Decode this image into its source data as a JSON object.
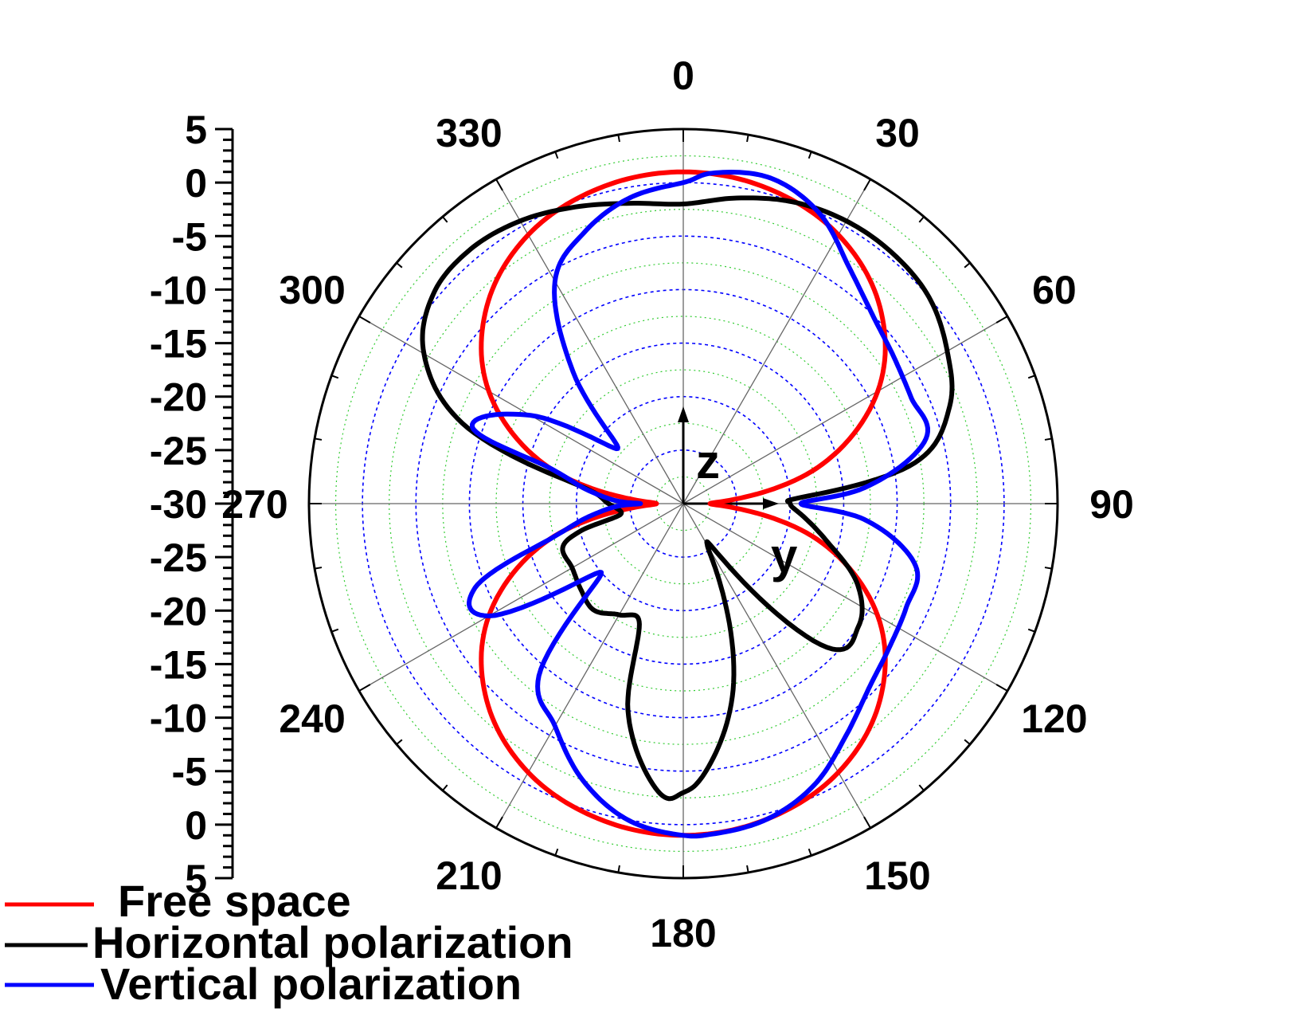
{
  "chart_data": {
    "type": "polar-line",
    "title": "",
    "radial_axis": {
      "min": -30,
      "max": 5,
      "step": 5,
      "tick_labels_upper": [
        "5",
        "0",
        "-5",
        "-10",
        "-15",
        "-20",
        "-25",
        "-30"
      ],
      "tick_labels_lower": [
        "-25",
        "-20",
        "-15",
        "-10",
        "-5",
        "0",
        "5"
      ]
    },
    "angular_axis": {
      "direction": "clockwise",
      "zero_at": "top",
      "tick_labels": [
        "0",
        "30",
        "60",
        "90",
        "120",
        "150",
        "180",
        "210",
        "240",
        "270",
        "300",
        "330"
      ]
    },
    "inner_labels": {
      "z": "z",
      "y": "y"
    },
    "grid": true,
    "legend_position": "bottom-left",
    "series": [
      {
        "name": "Free space",
        "color": "#ff0000",
        "theta": [
          0,
          15,
          30,
          45,
          60,
          75,
          85,
          90,
          95,
          105,
          120,
          135,
          150,
          165,
          180,
          195,
          210,
          225,
          240,
          255,
          265,
          270,
          275,
          285,
          300,
          315,
          330,
          345,
          360
        ],
        "r": [
          1.0,
          0.5,
          -1.0,
          -4.0,
          -9.0,
          -17.0,
          -25.0,
          -27.5,
          -25.0,
          -17.0,
          -9.0,
          -4.0,
          -1.0,
          0.5,
          1.0,
          0.5,
          -1.0,
          -4.0,
          -9.0,
          -17.0,
          -25.0,
          -27.5,
          -25.0,
          -17.0,
          -9.0,
          -4.0,
          -1.0,
          0.5,
          1.0
        ]
      },
      {
        "name": "Horizontal polarization",
        "color": "#000000",
        "theta": [
          0,
          10,
          20,
          30,
          40,
          50,
          60,
          70,
          80,
          87,
          90,
          95,
          105,
          115,
          125,
          135,
          145,
          150,
          155,
          165,
          175,
          180,
          185,
          195,
          200,
          210,
          220,
          230,
          240,
          250,
          255,
          260,
          270,
          280,
          290,
          300,
          310,
          320,
          330,
          340,
          350,
          360
        ],
        "r": [
          -2.0,
          -1.0,
          0.0,
          0.5,
          0.5,
          0.0,
          -1.5,
          -3.5,
          -8.0,
          -19.0,
          -20.0,
          -19.0,
          -16.0,
          -12.0,
          -10.0,
          -11.0,
          -24.0,
          -25.5,
          -22.0,
          -12.0,
          -5.0,
          -3.0,
          -3.0,
          -10.0,
          -18.0,
          -18.0,
          -17.0,
          -17.5,
          -18.0,
          -18.0,
          -20.0,
          -24.0,
          -23.0,
          -20.0,
          -8.0,
          -2.0,
          0.5,
          1.0,
          0.5,
          -0.5,
          -1.5,
          -2.0
        ]
      },
      {
        "name": "Vertical polarization",
        "color": "#0000ff",
        "theta": [
          0,
          5,
          15,
          25,
          35,
          45,
          55,
          65,
          75,
          85,
          90,
          95,
          105,
          115,
          125,
          135,
          145,
          155,
          165,
          175,
          180,
          190,
          200,
          210,
          220,
          230,
          240,
          248,
          255,
          262,
          268,
          270,
          272,
          278,
          285,
          290,
          300,
          310,
          320,
          330,
          340,
          350,
          360
        ],
        "r": [
          0.0,
          1.0,
          1.5,
          0.0,
          -3.0,
          -5.0,
          -6.0,
          -6.5,
          -6.5,
          -13.0,
          -19.0,
          -13.0,
          -7.5,
          -7.0,
          -6.5,
          -5.5,
          -3.5,
          -1.0,
          0.5,
          1.0,
          1.0,
          0.0,
          -2.5,
          -6.0,
          -9.0,
          -20.0,
          -9.0,
          -9.0,
          -17.0,
          -21.0,
          -24.0,
          -26.0,
          -24.0,
          -21.0,
          -17.0,
          -9.0,
          -13.5,
          -22.0,
          -14.0,
          -6.0,
          -3.0,
          -1.0,
          0.0
        ]
      }
    ]
  }
}
